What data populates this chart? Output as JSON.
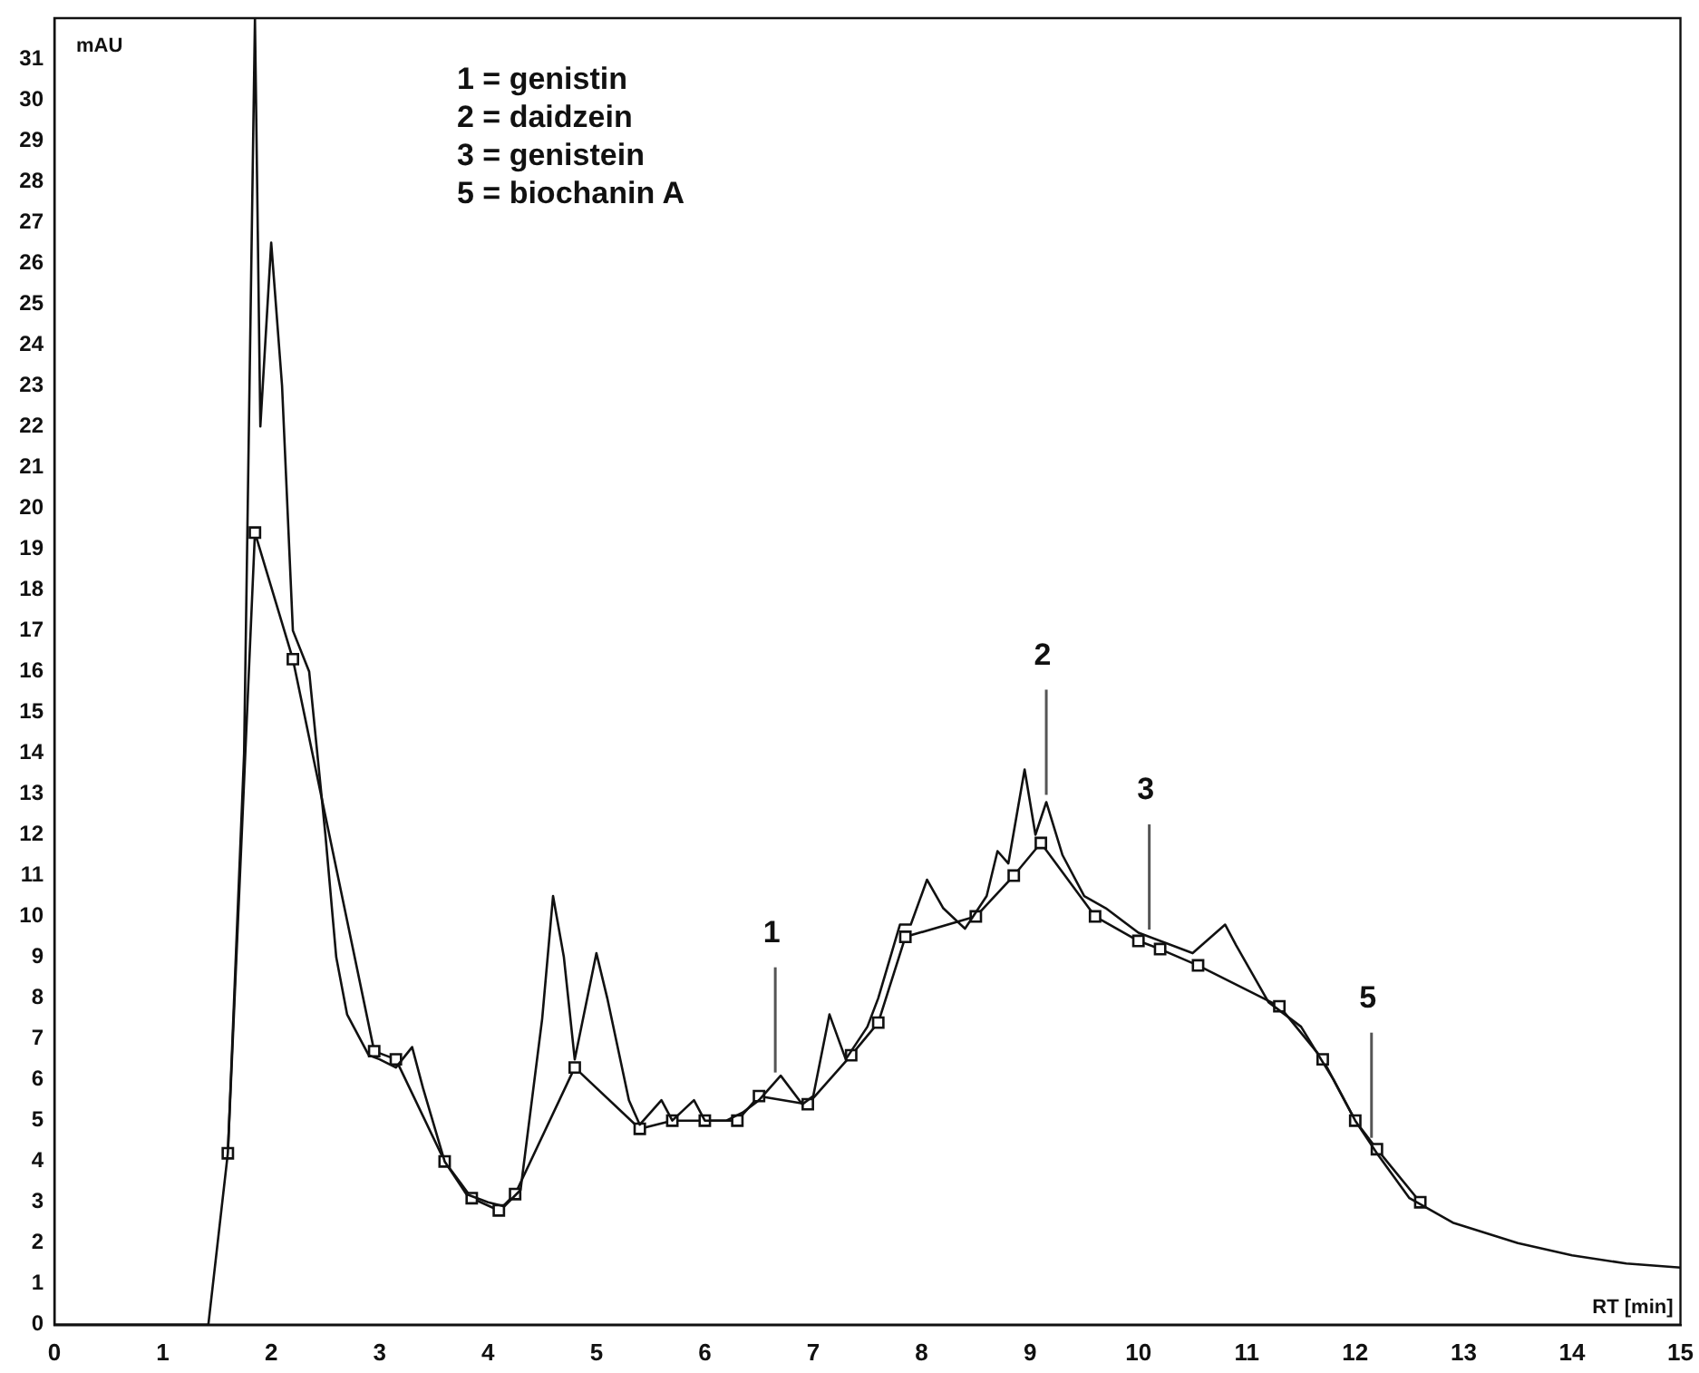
{
  "chart_data": {
    "type": "line",
    "xlabel": "RT [min]",
    "ylabel": "mAU",
    "xlim": [
      0,
      15
    ],
    "xticks": [
      0,
      1,
      2,
      3,
      4,
      5,
      6,
      7,
      8,
      9,
      10,
      11,
      12,
      13,
      14,
      15
    ],
    "ylim": [
      0,
      32
    ],
    "yticks": [
      0,
      1,
      2,
      3,
      4,
      5,
      6,
      7,
      8,
      9,
      10,
      11,
      12,
      13,
      14,
      15,
      16,
      17,
      18,
      19,
      20,
      21,
      22,
      23,
      24,
      25,
      26,
      27,
      28,
      29,
      30,
      31
    ],
    "grid": false,
    "annotations": [
      "1 = genistin",
      "2 = daidzein",
      "3 = genistein",
      "5 = biochanin A",
      {
        "text": "1",
        "x": 6.65,
        "y": 6.0
      },
      {
        "text": "2",
        "x": 9.15,
        "y": 12.8
      },
      {
        "text": "3",
        "x": 10.1,
        "y": 9.5
      },
      {
        "text": "5",
        "x": 12.15,
        "y": 4.4
      }
    ],
    "series": [
      {
        "color": "#111111",
        "marker": "none",
        "x": [
          0,
          1.42,
          1.6,
          1.75,
          1.85,
          1.9,
          2.0,
          2.1,
          2.2,
          2.35,
          2.5,
          2.6,
          2.7,
          2.9,
          3.0,
          3.15,
          3.3,
          3.4,
          3.6,
          3.8,
          4.0,
          4.15,
          4.3,
          4.5,
          4.6,
          4.7,
          4.8,
          5.0,
          5.1,
          5.3,
          5.4,
          5.6,
          5.7,
          5.9,
          6.0,
          6.2,
          6.35,
          6.5,
          6.7,
          6.9,
          7.0,
          7.15,
          7.3,
          7.5,
          7.6,
          7.8,
          7.9,
          8.05,
          8.2,
          8.4,
          8.6,
          8.7,
          8.8,
          8.95,
          9.05,
          9.15,
          9.3,
          9.5,
          9.7,
          10.0,
          10.5,
          10.8,
          10.9,
          11.2,
          11.5,
          11.8,
          12.0,
          12.2,
          12.5,
          12.9,
          13.5,
          14.0,
          14.5,
          15
        ],
        "values": [
          0,
          0,
          4.2,
          14,
          32,
          22,
          26.5,
          23,
          17,
          16,
          12,
          9,
          7.6,
          6.6,
          6.5,
          6.3,
          6.8,
          5.8,
          4.0,
          3.2,
          3.0,
          2.9,
          3.3,
          7.5,
          10.5,
          9,
          6.5,
          9.1,
          8,
          5.5,
          4.9,
          5.5,
          5.0,
          5.5,
          5.0,
          5.0,
          5.2,
          5.5,
          6.1,
          5.4,
          5.6,
          7.6,
          6.5,
          7.3,
          8.0,
          9.8,
          9.8,
          10.9,
          10.2,
          9.7,
          10.5,
          11.6,
          11.3,
          13.6,
          12.0,
          12.8,
          11.5,
          10.5,
          10.2,
          9.6,
          9.1,
          9.8,
          9.3,
          7.9,
          7.3,
          6.0,
          5.0,
          4.2,
          3.1,
          2.5,
          2.0,
          1.7,
          1.5,
          1.4
        ]
      },
      {
        "color": "#111111",
        "marker": "square",
        "x": [
          1.6,
          1.85,
          2.2,
          2.95,
          3.15,
          3.6,
          3.85,
          4.1,
          4.25,
          4.8,
          5.4,
          5.7,
          6.0,
          6.3,
          6.5,
          6.95,
          7.35,
          7.6,
          7.85,
          8.5,
          8.85,
          9.1,
          9.6,
          10.0,
          10.2,
          10.55,
          11.3,
          11.7,
          12.0,
          12.2,
          12.6
        ],
        "values": [
          4.2,
          19.4,
          16.3,
          6.7,
          6.5,
          4.0,
          3.1,
          2.8,
          3.2,
          6.3,
          4.8,
          5.0,
          5.0,
          5.0,
          5.6,
          5.4,
          6.6,
          7.4,
          9.5,
          10.0,
          11.0,
          11.8,
          10.0,
          9.4,
          9.2,
          8.8,
          7.8,
          6.5,
          5.0,
          4.3,
          3.0
        ]
      }
    ]
  }
}
